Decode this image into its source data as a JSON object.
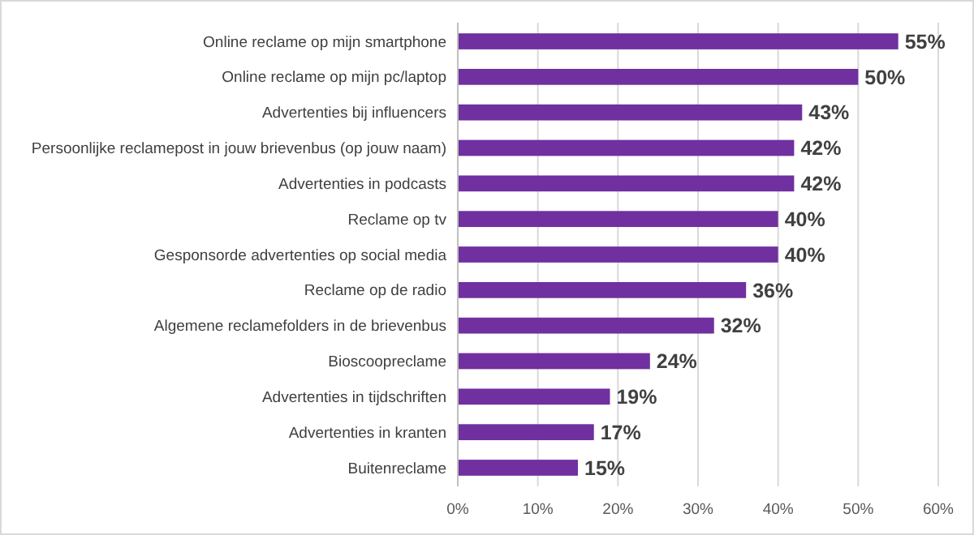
{
  "chart_data": {
    "type": "bar",
    "orientation": "horizontal",
    "categories": [
      "Online reclame op mijn smartphone",
      "Online reclame op mijn pc/laptop",
      "Advertenties bij influencers",
      "Persoonlijke reclamepost in jouw brievenbus (op jouw naam)",
      "Advertenties in podcasts",
      "Reclame op tv",
      "Gesponsorde advertenties op social media",
      "Reclame op de radio",
      "Algemene reclamefolders in de brievenbus",
      "Bioscoopreclame",
      "Advertenties in tijdschriften",
      "Advertenties in kranten",
      "Buitenreclame"
    ],
    "values": [
      55,
      50,
      43,
      42,
      42,
      40,
      40,
      36,
      32,
      24,
      19,
      17,
      15
    ],
    "value_labels": [
      "55%",
      "50%",
      "43%",
      "42%",
      "42%",
      "40%",
      "40%",
      "36%",
      "32%",
      "24%",
      "19%",
      "17%",
      "15%"
    ],
    "color": "#7030a0",
    "xlim": [
      0,
      60
    ],
    "xticks": [
      {
        "value": 0,
        "label": "0%"
      },
      {
        "value": 10,
        "label": "10%"
      },
      {
        "value": 20,
        "label": "20%"
      },
      {
        "value": 30,
        "label": "30%"
      },
      {
        "value": 40,
        "label": "40%"
      },
      {
        "value": 50,
        "label": "50%"
      },
      {
        "value": 60,
        "label": "60%"
      }
    ],
    "grid": "x"
  }
}
